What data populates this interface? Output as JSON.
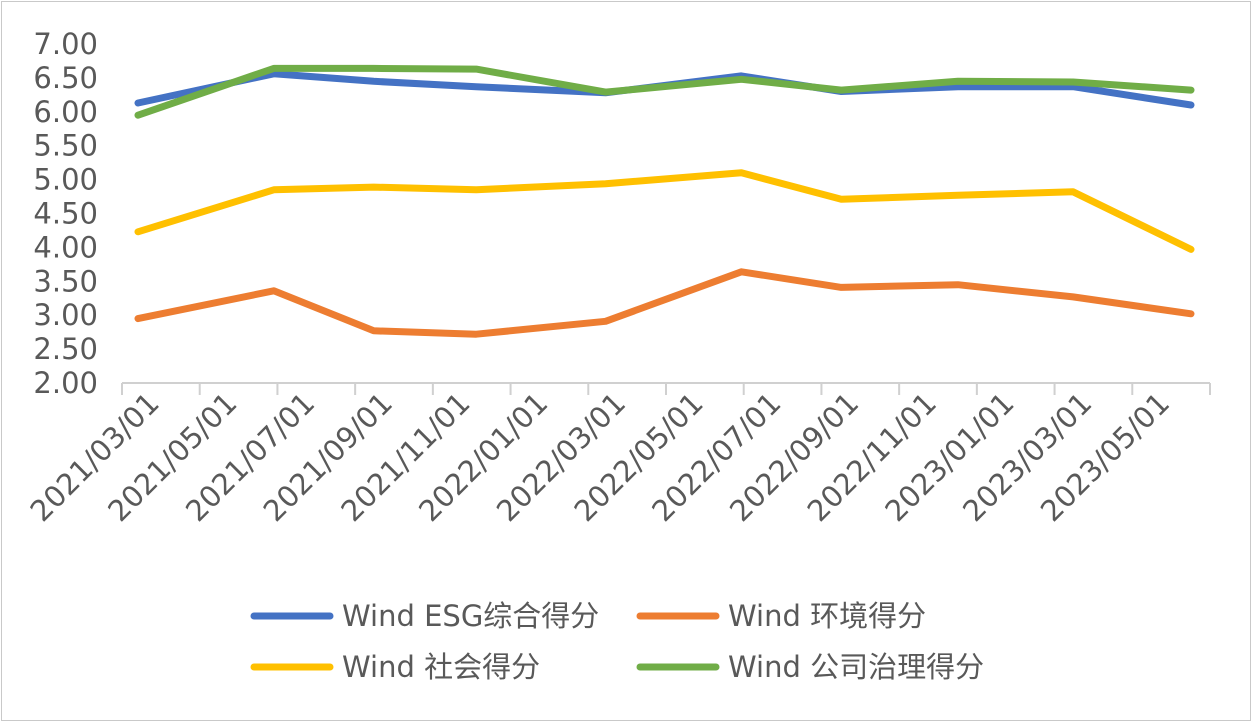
{
  "chart_data": {
    "type": "line",
    "title": "",
    "xlabel": "",
    "ylabel": "",
    "ylim": [
      2.0,
      7.0
    ],
    "y_ticks": [
      "2.00",
      "2.50",
      "3.00",
      "3.50",
      "4.00",
      "4.50",
      "5.00",
      "5.50",
      "6.00",
      "6.50",
      "7.00"
    ],
    "x_tick_labels": [
      "2021/03/01",
      "2021/05/01",
      "2021/07/01",
      "2021/09/01",
      "2021/11/01",
      "2022/01/01",
      "2022/03/01",
      "2022/05/01",
      "2022/07/01",
      "2022/09/01",
      "2022/11/01",
      "2023/01/01",
      "2023/03/01",
      "2023/05/01"
    ],
    "x": [
      "2021/03/01",
      "2021/06/15",
      "2021/09/01",
      "2021/11/20",
      "2022/03/01",
      "2022/06/15",
      "2022/09/01",
      "2022/12/01",
      "2023/03/01",
      "2023/06/01"
    ],
    "grid": false,
    "legend_position": "bottom",
    "series": [
      {
        "name": "Wind ESG综合得分",
        "color": "#4472C4",
        "values": [
          6.13,
          6.56,
          6.45,
          6.37,
          6.28,
          6.53,
          6.3,
          6.37,
          6.37,
          6.1
        ]
      },
      {
        "name": "Wind 环境得分",
        "color": "#ED7D31",
        "values": [
          2.95,
          3.36,
          2.77,
          2.72,
          2.91,
          3.64,
          3.41,
          3.45,
          3.27,
          3.02
        ]
      },
      {
        "name": "Wind 社会得分",
        "color": "#FFC000",
        "values": [
          4.23,
          4.85,
          4.89,
          4.85,
          4.94,
          5.1,
          4.71,
          4.77,
          4.82,
          3.97
        ]
      },
      {
        "name": "Wind 公司治理得分",
        "color": "#70AD47",
        "values": [
          5.95,
          6.64,
          6.64,
          6.63,
          6.29,
          6.48,
          6.32,
          6.45,
          6.44,
          6.32
        ]
      }
    ]
  }
}
